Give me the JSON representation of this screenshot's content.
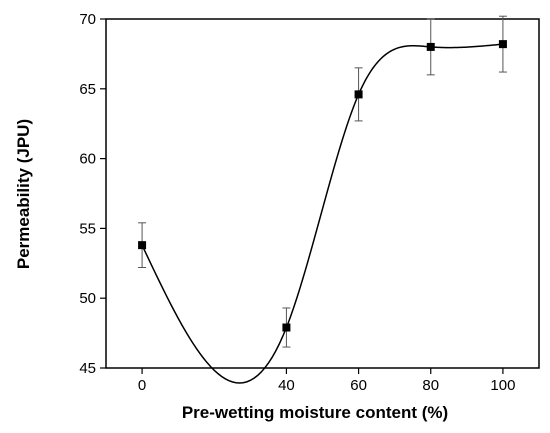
{
  "chart_data": {
    "type": "scatter",
    "title": "",
    "xlabel": "Pre-wetting moisture content (%)",
    "ylabel": "Permeability (JPU)",
    "xlim": [
      -10,
      110
    ],
    "ylim": [
      45,
      70
    ],
    "x_ticks": [
      "0",
      "40",
      "60",
      "80",
      "100"
    ],
    "x_tick_values": [
      0,
      40,
      60,
      80,
      100
    ],
    "y_ticks": [
      "45",
      "50",
      "55",
      "60",
      "65",
      "70"
    ],
    "y_tick_values": [
      45,
      50,
      55,
      60,
      65,
      70
    ],
    "grid": false,
    "curve": "smooth spline through points",
    "series": [
      {
        "x": [
          0,
          40,
          60,
          80,
          100
        ],
        "y": [
          53.8,
          47.9,
          64.6,
          68.0,
          68.2
        ],
        "error": [
          1.6,
          1.4,
          1.9,
          2.0,
          2.0
        ]
      }
    ],
    "colors": {
      "line": "#000000",
      "marker": "#000000"
    }
  }
}
